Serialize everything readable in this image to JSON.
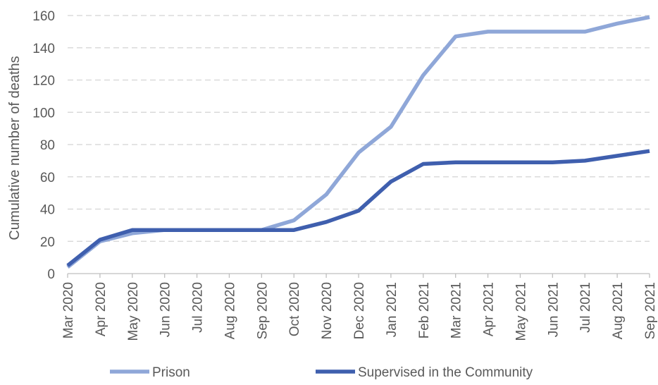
{
  "chart_data": {
    "type": "line",
    "title": "",
    "xlabel": "",
    "ylabel": "Cumulative number of deaths",
    "ylim": [
      0,
      160
    ],
    "yticks": [
      0,
      20,
      40,
      60,
      80,
      100,
      120,
      140,
      160
    ],
    "grid": "horizontal dashed",
    "legend": "bottom",
    "categories": [
      "Mar 2020",
      "Apr 2020",
      "May 2020",
      "Jun 2020",
      "Jul 2020",
      "Aug 2020",
      "Sep 2020",
      "Oct 2020",
      "Nov 2020",
      "Dec 2020",
      "Jan 2021",
      "Feb 2021",
      "Mar 2021",
      "Apr 2021",
      "May 2021",
      "Jun 2021",
      "Jul 2021",
      "Aug 2021",
      "Sep 2021"
    ],
    "series": [
      {
        "name": "Prison",
        "color": "#8FA7D8",
        "values": [
          4,
          20,
          25,
          27,
          27,
          27,
          27,
          33,
          49,
          75,
          91,
          123,
          147,
          150,
          150,
          150,
          150,
          155,
          159
        ]
      },
      {
        "name": "Supervised in the Community",
        "color": "#3F5FAE",
        "values": [
          5,
          21,
          27,
          27,
          27,
          27,
          27,
          27,
          32,
          39,
          57,
          68,
          69,
          69,
          69,
          69,
          70,
          73,
          76
        ]
      }
    ]
  }
}
